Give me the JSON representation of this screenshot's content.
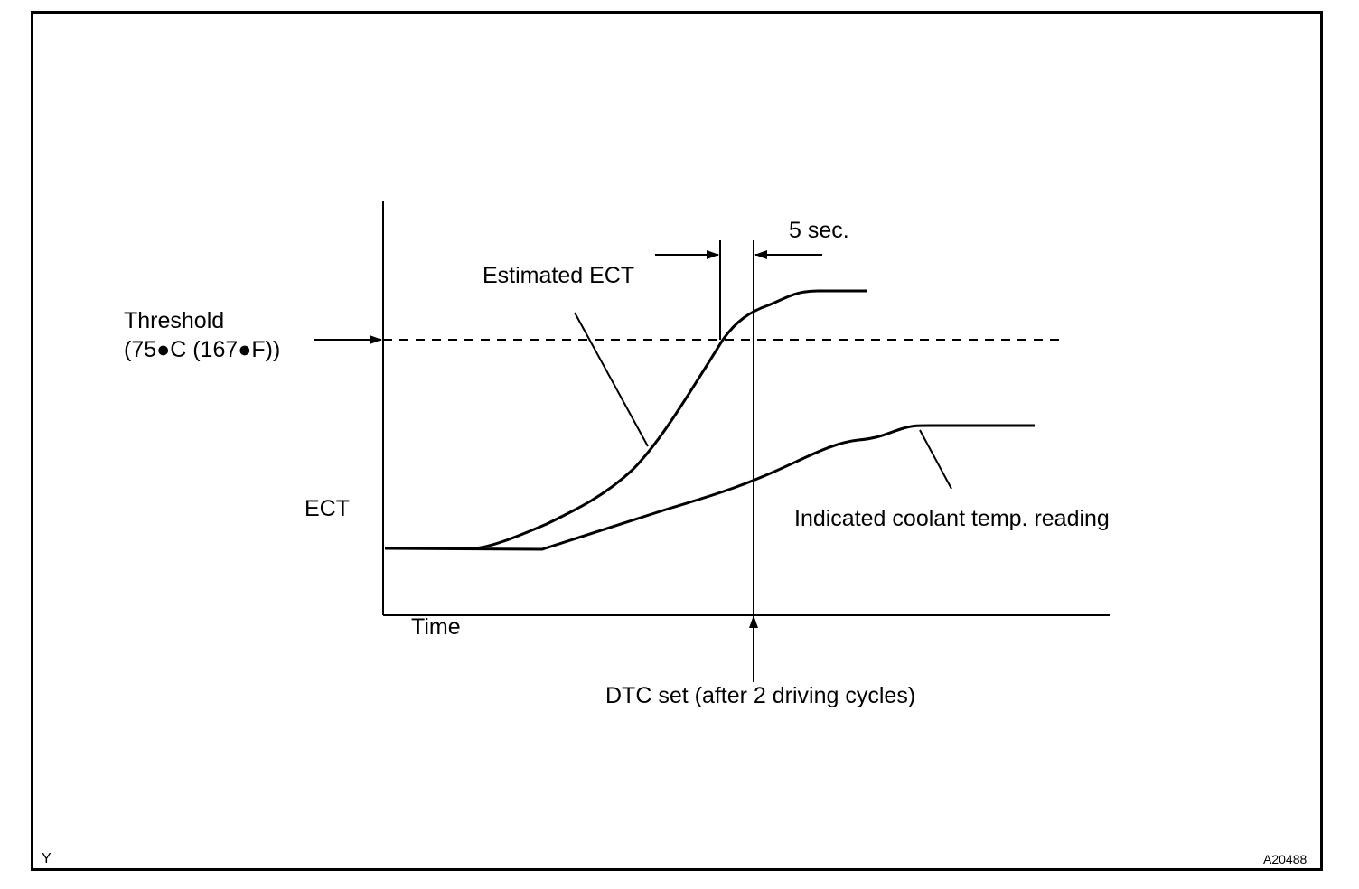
{
  "labels": {
    "threshold": "Threshold",
    "threshold_value": "(75●C (167●F))",
    "estimated_ect": "Estimated ECT",
    "five_sec": "5 sec.",
    "ect_axis": "ECT",
    "time_axis": "Time",
    "indicated": "Indicated coolant temp. reading",
    "dtc_set": "DTC set (after 2 driving cycles)"
  },
  "corner": {
    "left": "Y",
    "right": "A20488"
  }
}
